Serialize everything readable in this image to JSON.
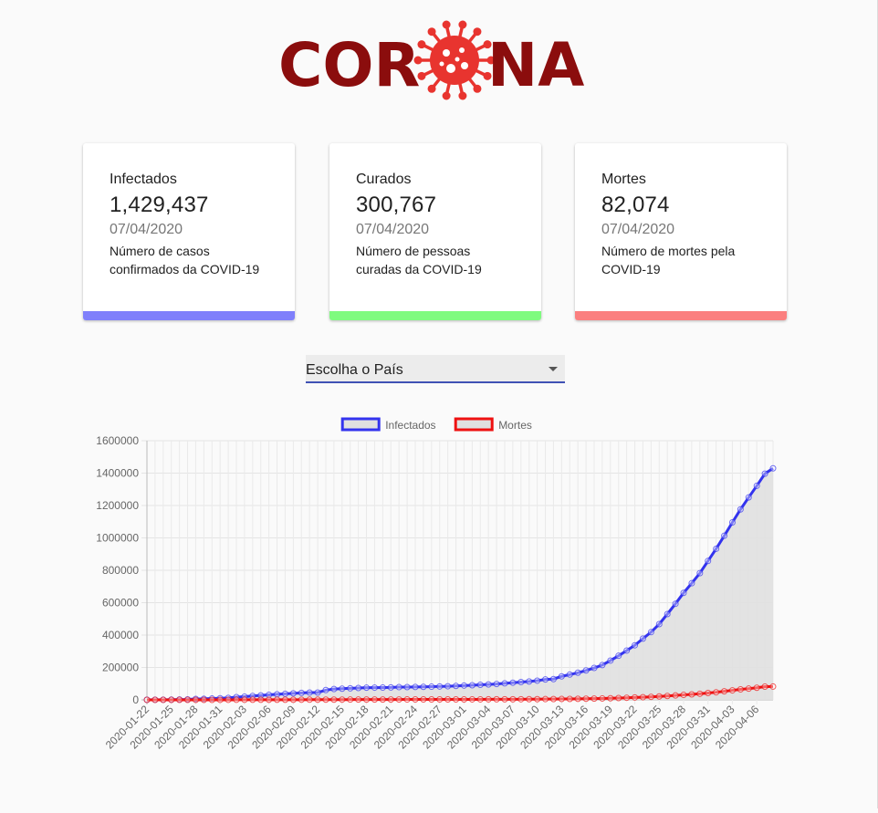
{
  "logo": {
    "text_left": "COR",
    "text_right": "NA",
    "icon": "coronavirus-icon",
    "color": "#8b0d0d",
    "virus_color": "#e8342f"
  },
  "cards": [
    {
      "title": "Infectados",
      "value": "1,429,437",
      "date": "07/04/2020",
      "desc_line1": "Número de casos",
      "desc_line2": "confirmados da COVID-19",
      "color": "#7f7ffb"
    },
    {
      "title": "Curados",
      "value": "300,767",
      "date": "07/04/2020",
      "desc_line1": "Número de pessoas",
      "desc_line2": "curadas da COVID-19",
      "color": "#7ffb7f"
    },
    {
      "title": "Mortes",
      "value": "82,074",
      "date": "07/04/2020",
      "desc_line1": "Número de mortes pela",
      "desc_line2": "COVID-19",
      "color": "#fb7f7f"
    }
  ],
  "country_select": {
    "label": "Escolha o País",
    "icon": "dropdown-arrow-icon"
  },
  "chart_data": {
    "type": "line",
    "ylim": [
      0,
      1600000
    ],
    "y_ticks": [
      "0",
      "200000",
      "400000",
      "600000",
      "800000",
      "1000000",
      "1200000",
      "1400000",
      "1600000"
    ],
    "x_tick_labels": [
      "2020-01-22",
      "2020-01-25",
      "2020-01-28",
      "2020-01-31",
      "2020-02-03",
      "2020-02-06",
      "2020-02-09",
      "2020-02-12",
      "2020-02-15",
      "2020-02-18",
      "2020-02-21",
      "2020-02-24",
      "2020-02-27",
      "2020-03-01",
      "2020-03-04",
      "2020-03-07",
      "2020-03-10",
      "2020-03-13",
      "2020-03-16",
      "2020-03-19",
      "2020-03-22",
      "2020-03-25",
      "2020-03-28",
      "2020-03-31",
      "2020-04-03",
      "2020-04-06"
    ],
    "grid": true,
    "legend_position": "top",
    "series": [
      {
        "name": "Infectados",
        "color": "#3333ee",
        "fill": "#e0e0e0",
        "values": [
          555,
          654,
          941,
          1434,
          2118,
          2927,
          5578,
          6166,
          8234,
          9927,
          12038,
          16787,
          19881,
          23892,
          27635,
          30794,
          34391,
          37120,
          40150,
          42762,
          44802,
          45221,
          60368,
          66885,
          69030,
          71224,
          73258,
          75136,
          75639,
          76197,
          76819,
          78572,
          78958,
          79561,
          80406,
          81388,
          82746,
          84112,
          86011,
          88369,
          90306,
          92840,
          95120,
          97886,
          101801,
          105847,
          109821,
          113590,
          118620,
          125875,
          128352,
          145205,
          156101,
          167454,
          181574,
          197102,
          214821,
          242570,
          272208,
          304507,
          336953,
          378235,
          418045,
          467653,
          529591,
          593291,
          660706,
          720117,
          782365,
          857487,
          932605,
          1013157,
          1095917,
          1176060,
          1249754,
          1321481,
          1396476,
          1429437
        ]
      },
      {
        "name": "Mortes",
        "color": "#ee1111",
        "fill": "#e0e0e0",
        "values": [
          17,
          18,
          26,
          42,
          56,
          82,
          131,
          133,
          171,
          213,
          259,
          362,
          426,
          492,
          564,
          634,
          719,
          806,
          906,
          1013,
          1113,
          1118,
          1371,
          1523,
          1666,
          1770,
          1868,
          2007,
          2122,
          2247,
          2251,
          2458,
          2469,
          2629,
          2708,
          2770,
          2814,
          2872,
          2941,
          2996,
          3085,
          3160,
          3254,
          3348,
          3460,
          3558,
          3803,
          3996,
          4262,
          4615,
          4720,
          5404,
          5819,
          6440,
          7126,
          7905,
          8733,
          9867,
          11299,
          12973,
          14623,
          16497,
          18615,
          21181,
          23970,
          27198,
          30652,
          33925,
          37582,
          42107,
          46809,
          52983,
          58787,
          64606,
          69374,
          74565,
          81865,
          82074
        ]
      }
    ]
  }
}
